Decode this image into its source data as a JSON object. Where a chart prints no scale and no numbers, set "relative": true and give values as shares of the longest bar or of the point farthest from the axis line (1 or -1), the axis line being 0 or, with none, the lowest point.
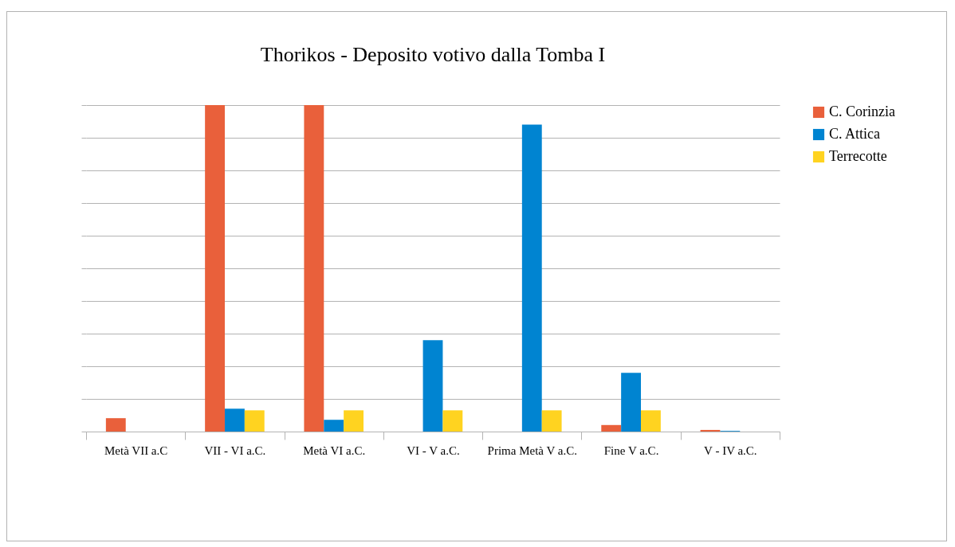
{
  "chart_data": {
    "type": "bar",
    "title": "Thorikos - Deposito votivo dalla Tomba I",
    "relative": true,
    "grid": "y",
    "legend": "right",
    "categories": [
      "Metà VII a.C",
      "VII - VI a.C.",
      "Metà VI a.C.",
      "VI - V a.C.",
      "Prima Metà V a.C.",
      "Fine V a.C.",
      "V - IV a.C."
    ],
    "series": [
      {
        "name": "C. Corinzia",
        "color": "#e9603b",
        "values": [
          0.041,
          1,
          1,
          null,
          null,
          0.02,
          0.005
        ]
      },
      {
        "name": "C. Attica",
        "color": "#0084d1",
        "values": [
          null,
          0.07,
          0.036,
          0.28,
          0.94,
          0.18,
          0.002
        ]
      },
      {
        "name": "Terrecotte",
        "color": "#ffd320",
        "values": [
          null,
          0.065,
          0.065,
          0.065,
          0.065,
          0.065,
          null
        ]
      }
    ]
  }
}
